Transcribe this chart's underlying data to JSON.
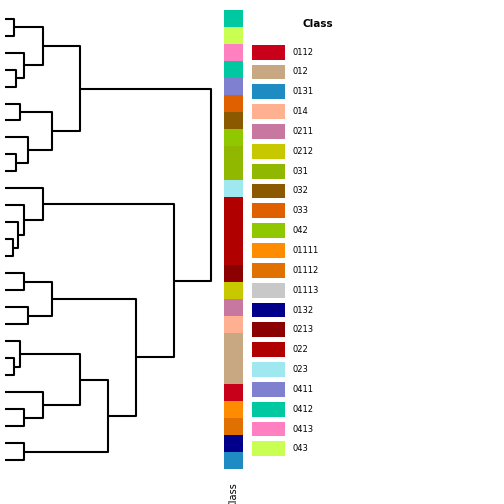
{
  "class_labels": [
    "0112",
    "012",
    "0131",
    "014",
    "0211",
    "0212",
    "031",
    "032",
    "033",
    "042",
    "01111",
    "01112",
    "01113",
    "0132",
    "0213",
    "022",
    "023",
    "0411",
    "0412",
    "0413",
    "043"
  ],
  "class_colors": {
    "0112": "#C8001A",
    "012": "#C8A882",
    "0131": "#1E8BC3",
    "014": "#FFB090",
    "0211": "#C878A0",
    "0212": "#C8C800",
    "031": "#90B800",
    "032": "#8B5A00",
    "033": "#E06000",
    "042": "#90C800",
    "01111": "#FF8C00",
    "01112": "#E07000",
    "01113": "#C8C8C8",
    "0132": "#00008B",
    "0213": "#8B0000",
    "022": "#B00000",
    "023": "#A0E8F0",
    "0411": "#8080D0",
    "0412": "#00C8A0",
    "0413": "#FF80C0",
    "043": "#C8FF50"
  },
  "legend_title": "Class",
  "xlabel": "Class",
  "bg_color": "#FFFFFF",
  "leaf_colors_top_to_bottom": [
    "#E07000",
    "#FF8C00",
    "#C8001A",
    "#C8A882",
    "#C8A882",
    "#C8A882",
    "#1E8BC3",
    "#00008B",
    "#FFB090",
    "#C878A0",
    "#C8C800",
    "#8B0000",
    "#B00000",
    "#B00000",
    "#B00000",
    "#B00000",
    "#A0E8F0",
    "#90B800",
    "#90B800",
    "#90C800",
    "#8B5A00",
    "#E06000",
    "#8080D0",
    "#00C8A0",
    "#FF80C0",
    "#C8FF50",
    "#00C8A0"
  ],
  "n_leaves": 27
}
